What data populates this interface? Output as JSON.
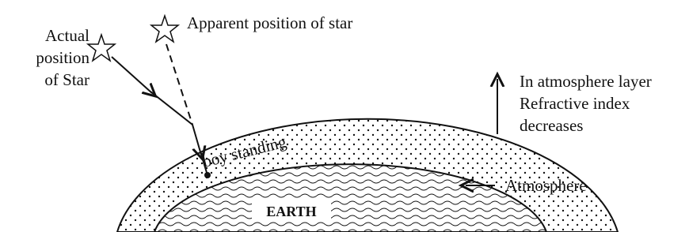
{
  "labels": {
    "actual_star": [
      "Actual",
      "position",
      "of Star"
    ],
    "apparent_star": "Apparent position of star",
    "note": [
      "In atmosphere layer",
      "Refractive index",
      "decreases"
    ],
    "boy": "boy standing",
    "atmosphere": "Atmosphere",
    "earth": "EARTH"
  }
}
